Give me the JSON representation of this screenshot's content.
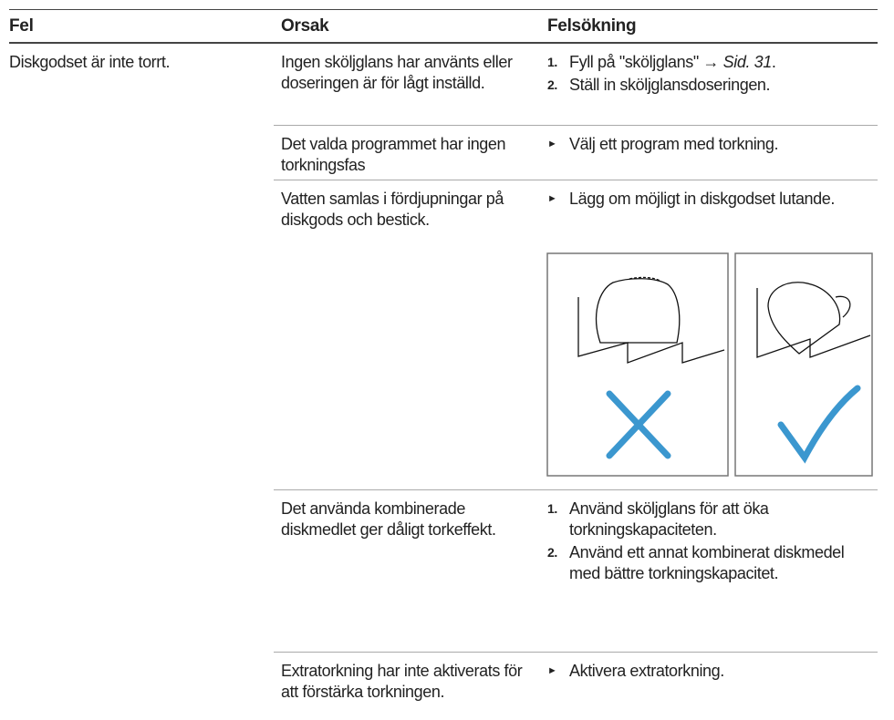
{
  "table": {
    "header": [
      "Fel",
      "Orsak",
      "Felsökning"
    ],
    "fault": "Diskgodset är inte torrt.",
    "rows": [
      {
        "cause": "Ingen sköljglans har använts eller doseringen är för lågt inställd.",
        "steps": [
          {
            "marker": "1.",
            "text": "Fyll på \"sköljglans\" → ",
            "link": "Sid. 31",
            "end": "."
          },
          {
            "marker": "2.",
            "text": "Ställ in sköljglansdoseringen."
          }
        ]
      },
      {
        "cause": "Det valda programmet har ingen torkningsfas",
        "steps": [
          {
            "text": "Välj ett program med torkning."
          }
        ]
      },
      {
        "cause": "Vatten samlas i fördjupningar på diskgods och bestick.",
        "steps": [
          {
            "text": "Lägg om möjligt in diskgodset lutande."
          }
        ]
      },
      {
        "cause": "Det använda kombinerade diskmedlet ger dåligt torkeffekt.",
        "steps": [
          {
            "marker": "1.",
            "text": "Använd sköljglans för att öka torkningskapaciteten."
          },
          {
            "marker": "2.",
            "text": "Använd ett annat kombinerat diskmedel med bättre torkningskapacitet."
          }
        ]
      },
      {
        "cause": "Extratorkning har inte aktiverats för att förstärka torkningen.",
        "steps": [
          {
            "text": "Aktivera extratorkning."
          }
        ]
      }
    ]
  }
}
